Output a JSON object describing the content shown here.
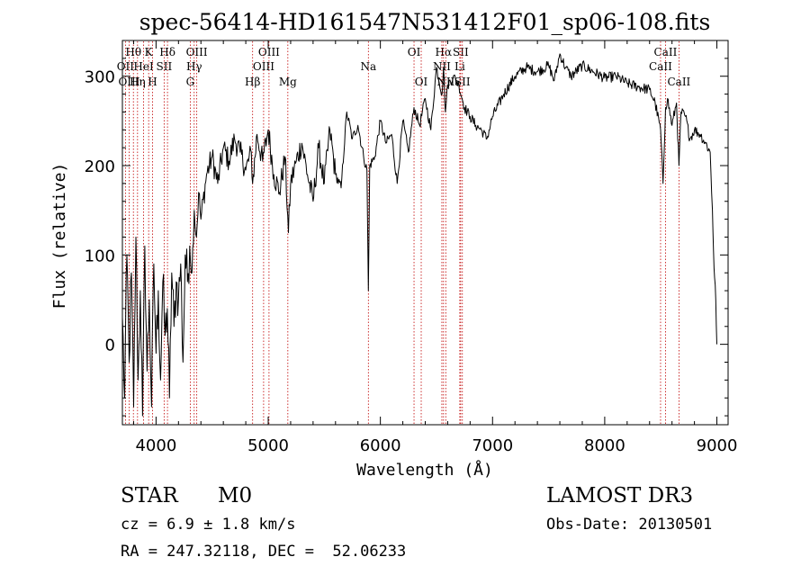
{
  "chart_data": {
    "type": "line",
    "title": "spec-56414-HD161547N531412F01_sp06-108.fits",
    "xlabel": "Wavelength (Å)",
    "ylabel": "Flux (relative)",
    "xlim": [
      3700,
      9100
    ],
    "ylim": [
      -90,
      340
    ],
    "xticks": [
      4000,
      5000,
      6000,
      7000,
      8000,
      9000
    ],
    "xtick_labels": [
      "4000",
      "5000",
      "6000",
      "7000",
      "8000",
      "9000"
    ],
    "yticks": [
      0,
      100,
      200,
      300
    ],
    "ytick_labels": [
      "0",
      "100",
      "200",
      "300"
    ],
    "grid": false,
    "legend": "none",
    "series": [
      {
        "name": "flux",
        "x": [
          3700,
          3720,
          3740,
          3760,
          3780,
          3800,
          3820,
          3840,
          3860,
          3880,
          3900,
          3920,
          3940,
          3960,
          3980,
          4000,
          4020,
          4040,
          4060,
          4080,
          4100,
          4120,
          4140,
          4160,
          4180,
          4200,
          4220,
          4240,
          4260,
          4280,
          4300,
          4320,
          4340,
          4360,
          4380,
          4400,
          4450,
          4500,
          4550,
          4600,
          4650,
          4700,
          4750,
          4800,
          4850,
          4861,
          4900,
          4950,
          5000,
          5050,
          5100,
          5150,
          5180,
          5200,
          5250,
          5300,
          5350,
          5400,
          5450,
          5500,
          5550,
          5600,
          5650,
          5700,
          5750,
          5800,
          5850,
          5880,
          5893,
          5905,
          5950,
          6000,
          6050,
          6100,
          6150,
          6200,
          6250,
          6300,
          6350,
          6400,
          6450,
          6500,
          6550,
          6563,
          6580,
          6600,
          6650,
          6700,
          6750,
          6800,
          6850,
          6900,
          6950,
          7000,
          7100,
          7200,
          7300,
          7400,
          7500,
          7550,
          7600,
          7650,
          7700,
          7800,
          7900,
          8000,
          8100,
          8200,
          8300,
          8400,
          8450,
          8498,
          8520,
          8542,
          8560,
          8600,
          8640,
          8662,
          8680,
          8720,
          8760,
          8800,
          8850,
          8900,
          8940,
          8960,
          8975,
          8990,
          9000
        ],
        "y": [
          30,
          -60,
          100,
          -20,
          80,
          -70,
          120,
          -40,
          60,
          -80,
          110,
          -30,
          50,
          -70,
          90,
          -10,
          60,
          -40,
          70,
          10,
          40,
          -60,
          80,
          20,
          70,
          50,
          90,
          -20,
          100,
          70,
          110,
          80,
          150,
          120,
          170,
          140,
          190,
          210,
          180,
          220,
          205,
          230,
          215,
          195,
          215,
          180,
          235,
          205,
          240,
          190,
          170,
          210,
          125,
          180,
          205,
          225,
          190,
          160,
          220,
          180,
          240,
          190,
          175,
          260,
          230,
          245,
          210,
          195,
          60,
          200,
          210,
          250,
          225,
          235,
          180,
          250,
          215,
          265,
          245,
          275,
          240,
          310,
          280,
          310,
          260,
          290,
          300,
          290,
          265,
          255,
          245,
          240,
          230,
          255,
          280,
          300,
          310,
          305,
          312,
          295,
          325,
          310,
          300,
          312,
          305,
          298,
          300,
          292,
          288,
          285,
          270,
          240,
          180,
          265,
          275,
          245,
          270,
          200,
          260,
          255,
          230,
          240,
          235,
          225,
          215,
          150,
          85,
          50,
          0
        ]
      }
    ],
    "line_markers": [
      {
        "label": "Hθ",
        "wavelength": 3798,
        "row": 1
      },
      {
        "label": "OII",
        "wavelength": 3727,
        "row": 2
      },
      {
        "label": "OIII",
        "wavelength": 3760,
        "row": 3
      },
      {
        "label": "K",
        "wavelength": 3934,
        "row": 1
      },
      {
        "label": "HeI",
        "wavelength": 3889,
        "row": 2
      },
      {
        "label": "Hη",
        "wavelength": 3835,
        "row": 3
      },
      {
        "label": "H",
        "wavelength": 3969,
        "row": 3
      },
      {
        "label": "Hδ",
        "wavelength": 4102,
        "row": 1
      },
      {
        "label": "SII",
        "wavelength": 4072,
        "row": 2
      },
      {
        "label": "OIII",
        "wavelength": 4363,
        "row": 1
      },
      {
        "label": "Hγ",
        "wavelength": 4340,
        "row": 2
      },
      {
        "label": "G",
        "wavelength": 4305,
        "row": 3
      },
      {
        "label": "OIII",
        "wavelength": 5007,
        "row": 1
      },
      {
        "label": "OIII",
        "wavelength": 4959,
        "row": 2
      },
      {
        "label": "Hβ",
        "wavelength": 4861,
        "row": 3
      },
      {
        "label": "Mg",
        "wavelength": 5175,
        "row": 3
      },
      {
        "label": "Na",
        "wavelength": 5893,
        "row": 2
      },
      {
        "label": "OI",
        "wavelength": 6300,
        "row": 1
      },
      {
        "label": "OI",
        "wavelength": 6364,
        "row": 3
      },
      {
        "label": "Hα",
        "wavelength": 6563,
        "row": 1
      },
      {
        "label": "SII",
        "wavelength": 6716,
        "row": 1
      },
      {
        "label": "NII",
        "wavelength": 6548,
        "row": 2
      },
      {
        "label": "Li",
        "wavelength": 6708,
        "row": 2
      },
      {
        "label": "NII",
        "wavelength": 6583,
        "row": 3
      },
      {
        "label": "SII",
        "wavelength": 6731,
        "row": 3
      },
      {
        "label": "CaII",
        "wavelength": 8542,
        "row": 1
      },
      {
        "label": "CaII",
        "wavelength": 8498,
        "row": 2
      },
      {
        "label": "CaII",
        "wavelength": 8662,
        "row": 3
      }
    ]
  },
  "info": {
    "class_label": "STAR",
    "subclass": "M0",
    "redshift": "cz = 6.9 ± 1.8 km/s",
    "coords": "RA = 247.32118, DEC =  52.06233",
    "survey": "LAMOST DR3",
    "obs_date": "Obs-Date: 20130501"
  },
  "colors": {
    "line": "#000000",
    "marker": "#c00000",
    "background": "#ffffff"
  }
}
